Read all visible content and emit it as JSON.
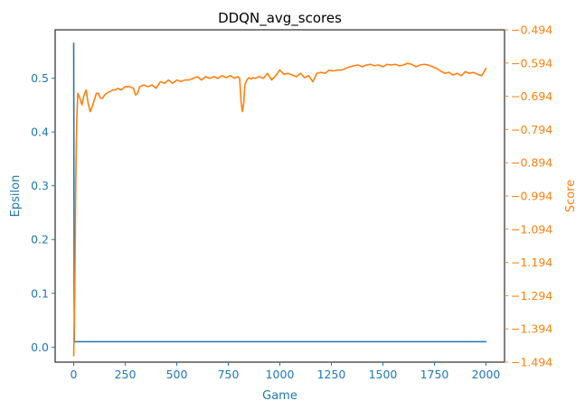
{
  "chart_data": {
    "type": "line",
    "title": "DDQN_avg_scores",
    "xlabel": "Game",
    "ylabel": "Epsilon",
    "y2label": "Score",
    "xlim": [
      -90,
      2090
    ],
    "ylim": [
      -0.028,
      0.59
    ],
    "y2lim": [
      -1.494,
      -0.494
    ],
    "x_ticks": [
      0,
      250,
      500,
      750,
      1000,
      1250,
      1500,
      1750,
      2000
    ],
    "y_ticks": [
      0.0,
      0.1,
      0.2,
      0.3,
      0.4,
      0.5
    ],
    "y2_ticks": [
      -1.494,
      -1.394,
      -1.294,
      -1.194,
      -1.094,
      -0.994,
      -0.894,
      -0.794,
      -0.694,
      -0.594,
      -0.494
    ],
    "x_tick_labels": [
      "0",
      "250",
      "500",
      "750",
      "1000",
      "1250",
      "1500",
      "1750",
      "2000"
    ],
    "y_tick_labels": [
      "0.0",
      "0.1",
      "0.2",
      "0.3",
      "0.4",
      "0.5"
    ],
    "y2_tick_labels": [
      "−1.494",
      "−1.394",
      "−1.294",
      "−1.194",
      "−1.094",
      "−0.994",
      "−0.894",
      "−0.794",
      "−0.694",
      "−0.594",
      "−0.494"
    ],
    "colors": {
      "epsilon": "#1f77b4",
      "score": "#ff7f0e"
    },
    "grid": false,
    "series": [
      {
        "axis": "left",
        "color": "#1f77b4",
        "x": [
          0,
          1,
          3,
          6,
          2000
        ],
        "y": [
          0.565,
          0.35,
          0.01,
          0.01,
          0.01
        ]
      },
      {
        "axis": "right",
        "color": "#ff7f0e",
        "x": [
          0,
          5,
          10,
          15,
          20,
          30,
          40,
          50,
          60,
          70,
          80,
          90,
          100,
          110,
          120,
          130,
          140,
          150,
          160,
          175,
          190,
          200,
          215,
          230,
          250,
          270,
          290,
          300,
          310,
          320,
          340,
          360,
          380,
          400,
          420,
          440,
          460,
          480,
          500,
          520,
          540,
          560,
          580,
          600,
          620,
          640,
          660,
          680,
          700,
          720,
          740,
          760,
          780,
          795,
          805,
          812,
          818,
          825,
          830,
          840,
          850,
          860,
          870,
          880,
          900,
          920,
          940,
          960,
          980,
          1000,
          1020,
          1040,
          1060,
          1080,
          1100,
          1120,
          1140,
          1160,
          1180,
          1200,
          1220,
          1240,
          1260,
          1280,
          1300,
          1320,
          1340,
          1360,
          1380,
          1400,
          1420,
          1440,
          1460,
          1480,
          1500,
          1520,
          1540,
          1560,
          1580,
          1600,
          1620,
          1640,
          1660,
          1680,
          1700,
          1720,
          1740,
          1760,
          1780,
          1800,
          1820,
          1840,
          1860,
          1880,
          1900,
          1920,
          1940,
          1960,
          1980,
          2000
        ],
        "y": [
          -1.475,
          -1.3,
          -0.95,
          -0.76,
          -0.685,
          -0.7,
          -0.72,
          -0.69,
          -0.675,
          -0.715,
          -0.74,
          -0.725,
          -0.705,
          -0.685,
          -0.685,
          -0.7,
          -0.7,
          -0.69,
          -0.685,
          -0.68,
          -0.675,
          -0.675,
          -0.67,
          -0.675,
          -0.665,
          -0.665,
          -0.67,
          -0.69,
          -0.685,
          -0.665,
          -0.66,
          -0.665,
          -0.66,
          -0.67,
          -0.65,
          -0.655,
          -0.645,
          -0.655,
          -0.645,
          -0.65,
          -0.645,
          -0.645,
          -0.64,
          -0.635,
          -0.645,
          -0.635,
          -0.64,
          -0.635,
          -0.64,
          -0.632,
          -0.638,
          -0.632,
          -0.64,
          -0.635,
          -0.64,
          -0.71,
          -0.74,
          -0.715,
          -0.66,
          -0.645,
          -0.638,
          -0.642,
          -0.638,
          -0.64,
          -0.635,
          -0.64,
          -0.625,
          -0.645,
          -0.632,
          -0.615,
          -0.628,
          -0.625,
          -0.63,
          -0.635,
          -0.625,
          -0.638,
          -0.632,
          -0.65,
          -0.625,
          -0.622,
          -0.625,
          -0.615,
          -0.618,
          -0.615,
          -0.615,
          -0.61,
          -0.605,
          -0.602,
          -0.6,
          -0.605,
          -0.6,
          -0.598,
          -0.602,
          -0.6,
          -0.605,
          -0.598,
          -0.6,
          -0.598,
          -0.602,
          -0.6,
          -0.595,
          -0.598,
          -0.605,
          -0.6,
          -0.598,
          -0.6,
          -0.605,
          -0.61,
          -0.618,
          -0.625,
          -0.622,
          -0.63,
          -0.625,
          -0.632,
          -0.62,
          -0.625,
          -0.622,
          -0.628,
          -0.632,
          -0.61
        ]
      }
    ]
  }
}
